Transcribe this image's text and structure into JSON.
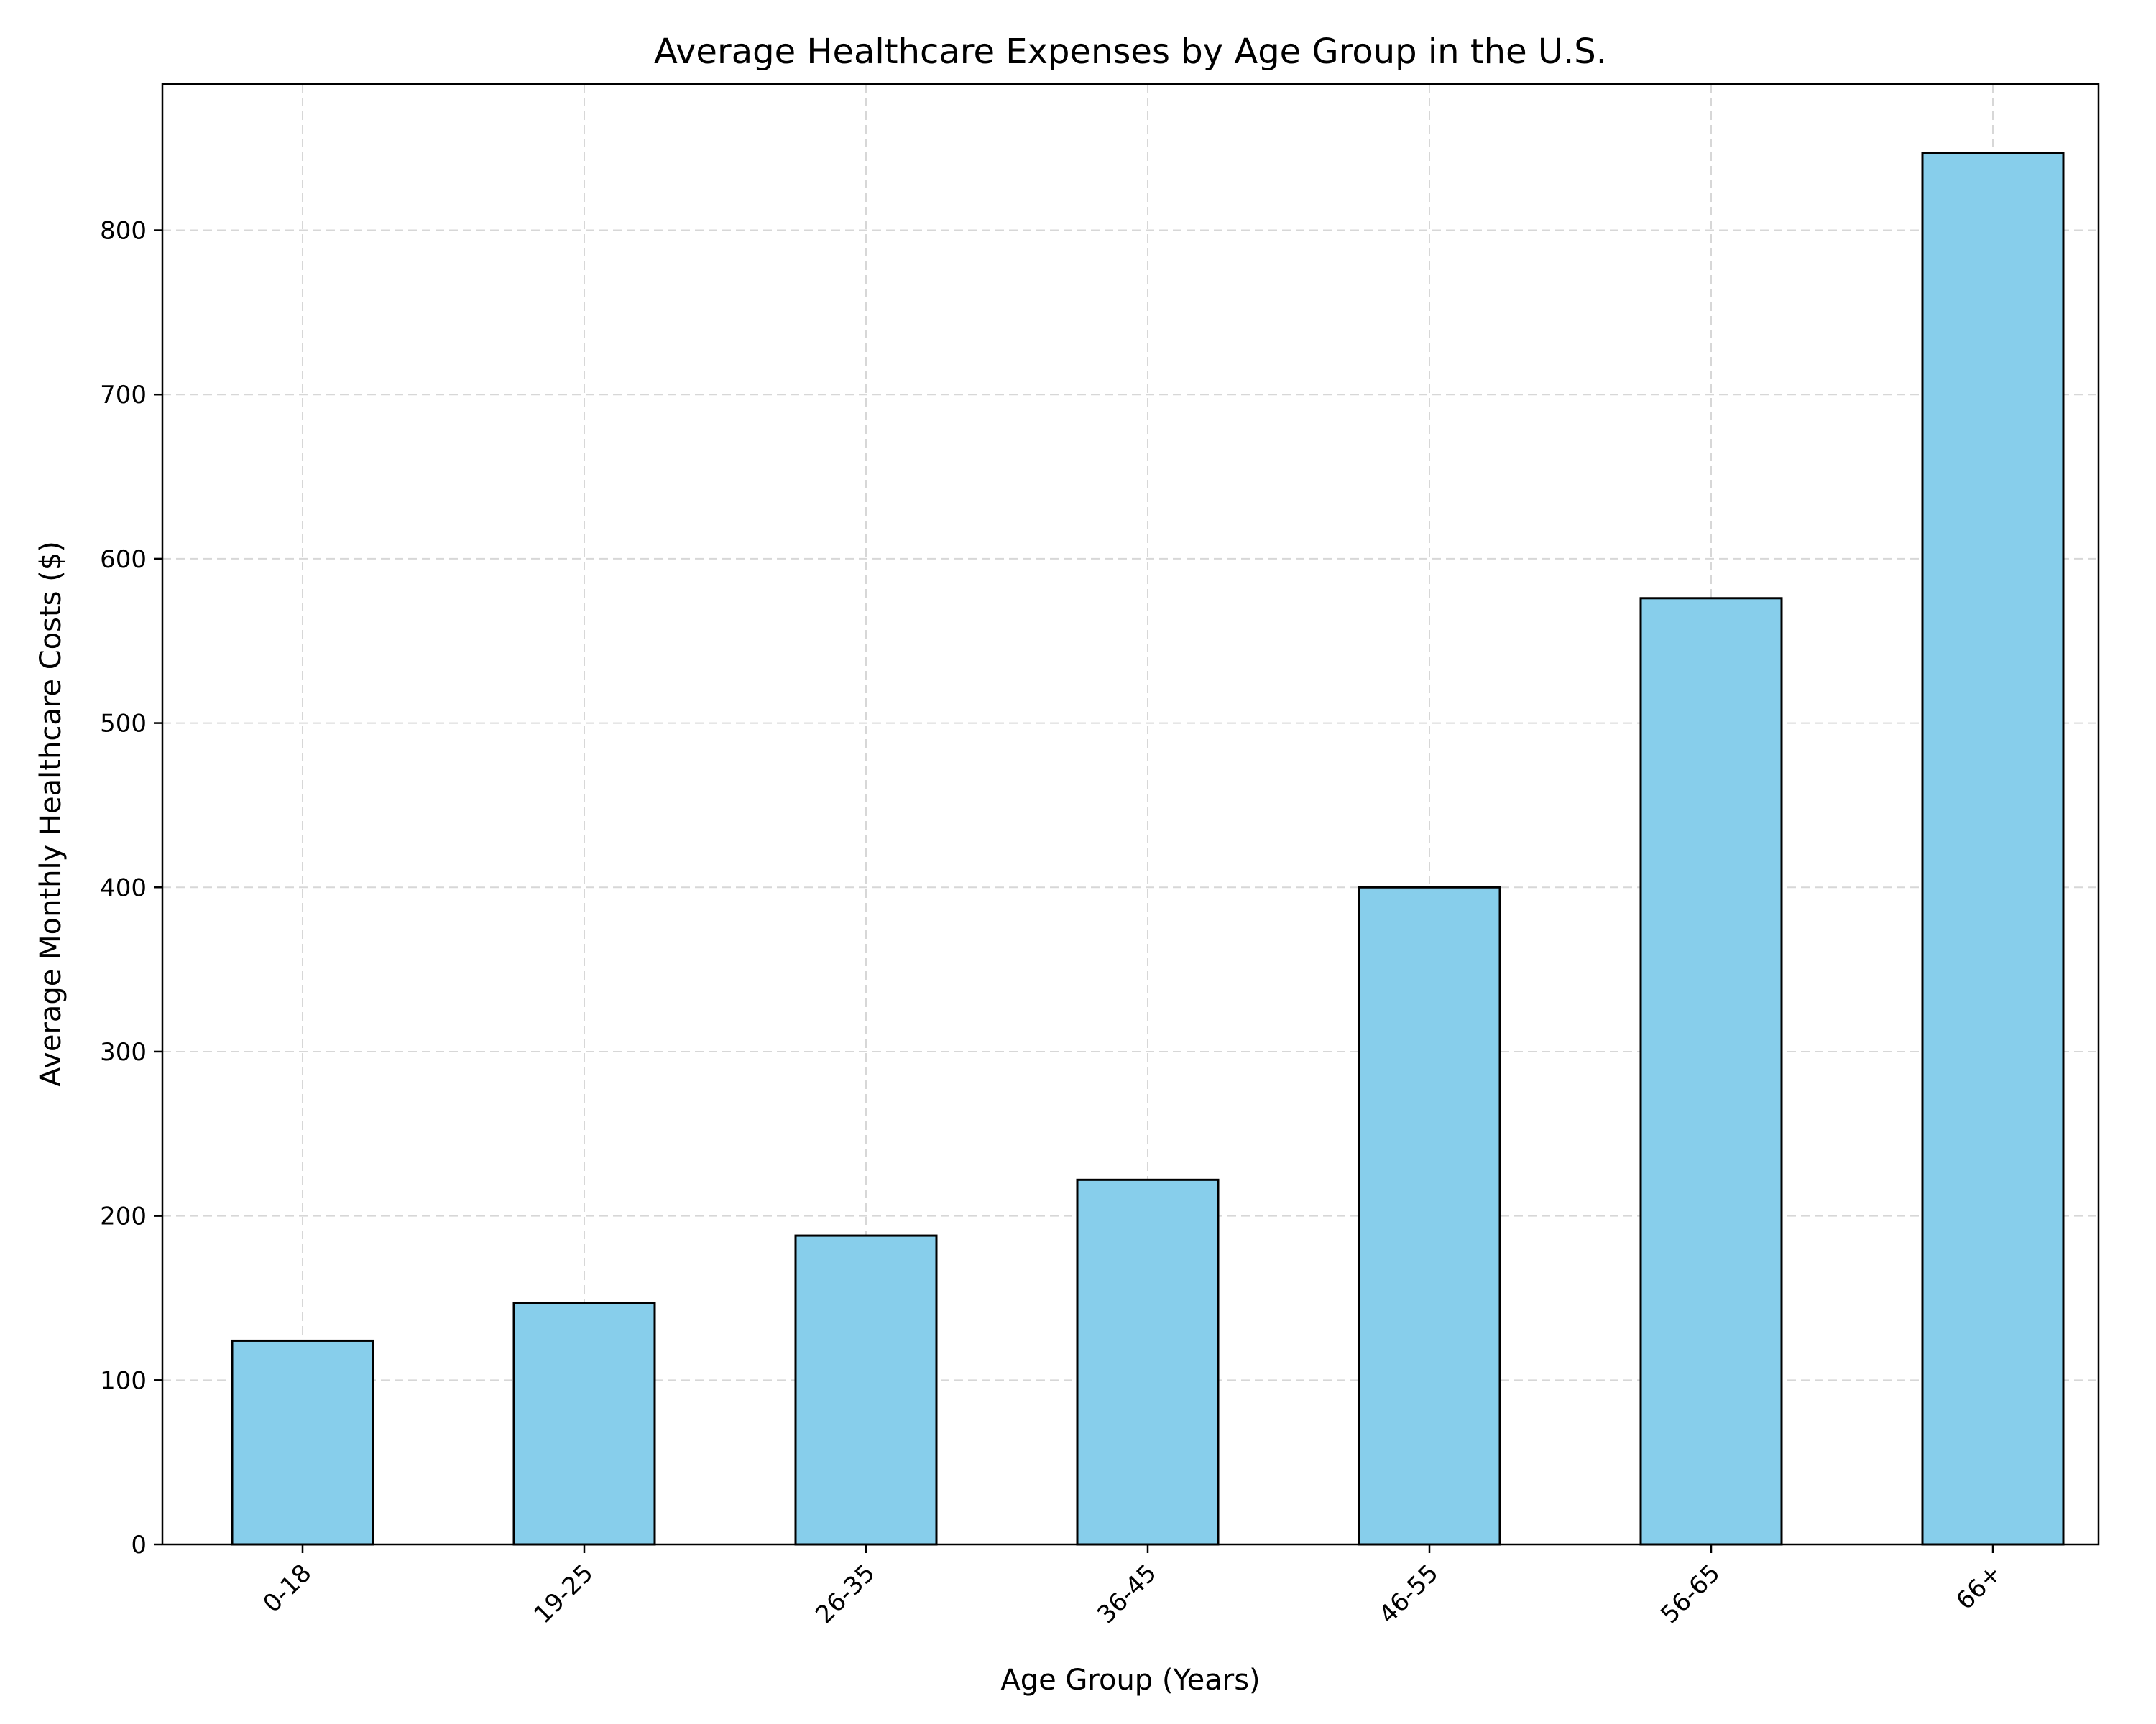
{
  "chart_data": {
    "type": "bar",
    "title": "Average Healthcare Expenses by Age Group in the U.S.",
    "xlabel": "Age Group (Years)",
    "ylabel": "Average Monthly Healthcare Costs ($)",
    "categories": [
      "0-18",
      "19-25",
      "26-35",
      "36-45",
      "46-55",
      "56-65",
      "66+"
    ],
    "values": [
      124,
      147,
      188,
      222,
      400,
      576,
      847
    ],
    "ylim": [
      0,
      889
    ],
    "yticks": [
      0,
      100,
      200,
      300,
      400,
      500,
      600,
      700,
      800
    ],
    "grid": true,
    "bar_color": "#87ceeb",
    "edge_color": "#000000"
  }
}
